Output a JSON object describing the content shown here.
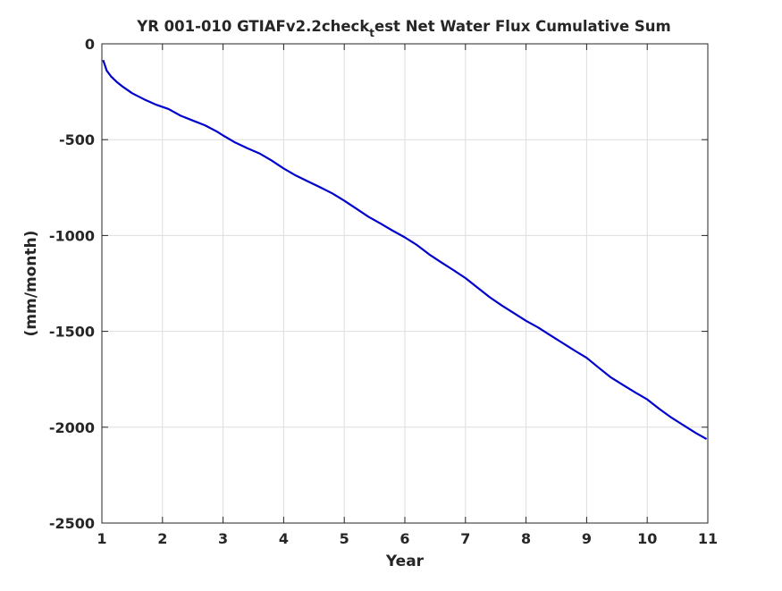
{
  "chart_data": {
    "type": "line",
    "title": {
      "prefix": "YR 001-010 GTIAFv2.2check",
      "subscript": "t",
      "suffix": "est Net Water Flux Cumulative Sum"
    },
    "xlabel": "Year",
    "ylabel": "(mm/month)",
    "xlim": [
      1,
      11
    ],
    "ylim": [
      -2500,
      0
    ],
    "xticks": [
      1,
      2,
      3,
      4,
      5,
      6,
      7,
      8,
      9,
      10,
      11
    ],
    "xtick_labels": [
      "1",
      "2",
      "3",
      "4",
      "5",
      "6",
      "7",
      "8",
      "9",
      "10",
      "11"
    ],
    "yticks": [
      0,
      -500,
      -1000,
      -1500,
      -2000,
      -2500
    ],
    "ytick_labels": [
      "0",
      "-500",
      "-1000",
      "-1500",
      "-2000",
      "-2500"
    ],
    "grid": true,
    "line_color": "#0000cc",
    "series": [
      {
        "x": [
          1.02,
          1.08,
          1.15,
          1.25,
          1.35,
          1.5,
          1.7,
          1.9,
          2.1,
          2.3,
          2.5,
          2.7,
          2.9,
          3.0,
          3.2,
          3.4,
          3.6,
          3.8,
          4.0,
          4.2,
          4.4,
          4.6,
          4.8,
          5.0,
          5.2,
          5.4,
          5.6,
          5.8,
          6.0,
          6.2,
          6.4,
          6.6,
          6.8,
          7.0,
          7.2,
          7.4,
          7.6,
          7.8,
          8.0,
          8.2,
          8.4,
          8.6,
          8.8,
          9.0,
          9.2,
          9.4,
          9.6,
          9.8,
          10.0,
          10.2,
          10.4,
          10.6,
          10.8,
          10.98
        ],
        "y": [
          -85,
          -140,
          -170,
          -200,
          -225,
          -258,
          -290,
          -318,
          -340,
          -375,
          -400,
          -425,
          -458,
          -478,
          -515,
          -545,
          -572,
          -608,
          -650,
          -687,
          -718,
          -748,
          -780,
          -818,
          -860,
          -902,
          -938,
          -975,
          -1010,
          -1050,
          -1098,
          -1140,
          -1180,
          -1222,
          -1272,
          -1322,
          -1365,
          -1405,
          -1445,
          -1480,
          -1520,
          -1560,
          -1600,
          -1638,
          -1690,
          -1740,
          -1780,
          -1818,
          -1855,
          -1905,
          -1950,
          -1990,
          -2030,
          -2062
        ]
      }
    ]
  }
}
